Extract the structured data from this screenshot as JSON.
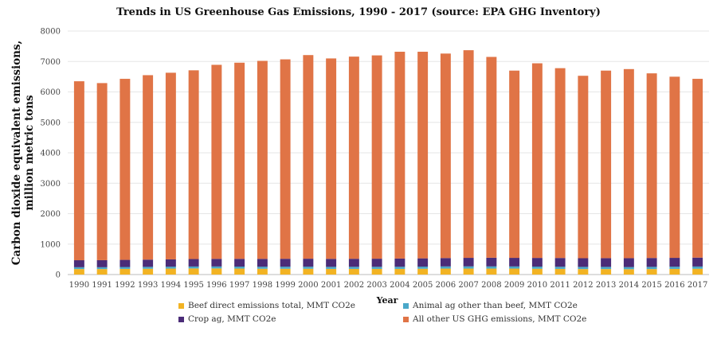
{
  "chart_data": {
    "type": "bar",
    "stacked": true,
    "title": "Trends in US Greenhouse Gas Emissions, 1990 - 2017 (source: EPA GHG Inventory)",
    "xlabel": "Year",
    "ylabel": "Carbon dioxide equivalent emissions, million metric tons",
    "ylim": [
      0,
      8000
    ],
    "yticks": [
      0,
      1000,
      2000,
      3000,
      4000,
      5000,
      6000,
      7000,
      8000
    ],
    "grid": true,
    "legend_position": "bottom",
    "categories": [
      "1990",
      "1991",
      "1992",
      "1993",
      "1994",
      "1995",
      "1996",
      "1997",
      "1998",
      "1999",
      "2000",
      "2001",
      "2002",
      "2003",
      "2004",
      "2005",
      "2006",
      "2007",
      "2008",
      "2009",
      "2010",
      "2011",
      "2012",
      "2013",
      "2014",
      "2015",
      "2016",
      "2017"
    ],
    "series": [
      {
        "name": "Beef direct emissions total, MMT CO2e",
        "color": "#f2b323",
        "values": [
          180,
          180,
          185,
          190,
          195,
          200,
          200,
          195,
          190,
          190,
          190,
          185,
          185,
          185,
          185,
          190,
          195,
          195,
          195,
          195,
          190,
          185,
          180,
          180,
          175,
          180,
          185,
          190
        ]
      },
      {
        "name": "Animal ag other than beef, MMT CO2e",
        "color": "#4aa8c9",
        "values": [
          60,
          60,
          62,
          62,
          63,
          64,
          65,
          66,
          67,
          68,
          68,
          68,
          69,
          69,
          70,
          70,
          72,
          73,
          72,
          71,
          71,
          71,
          71,
          71,
          70,
          72,
          73,
          74
        ]
      },
      {
        "name": "Crop ag, MMT CO2e",
        "color": "#4b2c78",
        "values": [
          230,
          232,
          235,
          238,
          240,
          245,
          250,
          255,
          258,
          260,
          262,
          262,
          264,
          266,
          270,
          272,
          275,
          280,
          285,
          282,
          285,
          288,
          285,
          288,
          292,
          292,
          290,
          292
        ]
      },
      {
        "name": "All other US GHG emissions, MMT CO2e",
        "color": "#e07446",
        "values": [
          5880,
          5818,
          5948,
          6060,
          6132,
          6201,
          6375,
          6444,
          6505,
          6552,
          6690,
          6585,
          6642,
          6680,
          6795,
          6788,
          6718,
          6822,
          6598,
          6152,
          6394,
          6236,
          5994,
          6161,
          6213,
          6066,
          5952,
          5874
        ]
      }
    ]
  }
}
